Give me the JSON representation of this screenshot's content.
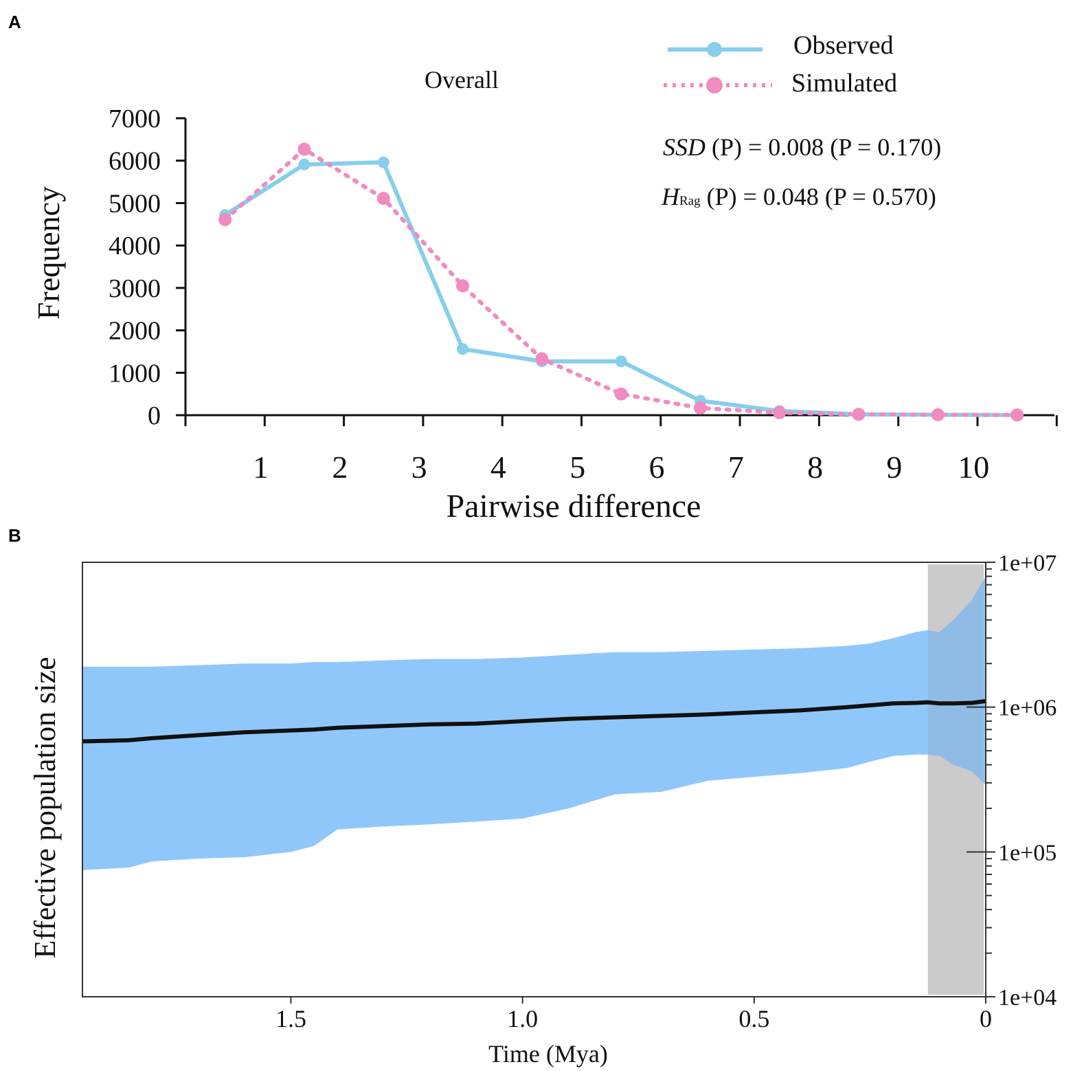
{
  "panels": {
    "a_label": "A",
    "b_label": "B"
  },
  "colors": {
    "observed": "#87CEEB",
    "simulated": "#F08BC0",
    "hpd_fill": "#8AC4FB",
    "median_line": "#111111",
    "shade": "#D9D9D9"
  },
  "chart_data": [
    {
      "type": "line",
      "panel": "A",
      "title": "Overall",
      "xlabel": "Pairwise difference",
      "ylabel": "Frequency",
      "categories": [
        1,
        2,
        3,
        4,
        5,
        6,
        7,
        8,
        9,
        10
      ],
      "ylim": [
        0,
        7000
      ],
      "yticks": [
        "0",
        "1000",
        "2000",
        "3000",
        "4000",
        "5000",
        "6000",
        "7000"
      ],
      "xtick_labels": [
        "1",
        "2",
        "3",
        "4",
        "5",
        "6",
        "7",
        "8",
        "9",
        "10"
      ],
      "series": [
        {
          "name": "Observed",
          "style": "solid",
          "x": [
            0.5,
            1.5,
            2.5,
            3.5,
            4.5,
            5.5,
            6.5,
            7.5,
            8.5,
            9.5,
            10.5
          ],
          "values": [
            4720,
            5910,
            5960,
            1560,
            1270,
            1270,
            340,
            100,
            20,
            10,
            5
          ]
        },
        {
          "name": "Simulated",
          "style": "dotted",
          "x": [
            0.5,
            1.5,
            2.5,
            3.5,
            4.5,
            5.5,
            6.5,
            7.5,
            8.5,
            9.5,
            10.5
          ],
          "values": [
            4610,
            6270,
            5110,
            3050,
            1330,
            500,
            170,
            60,
            20,
            10,
            5
          ]
        }
      ],
      "annotations": {
        "ssd": {
          "name": "SSD",
          "text": " (P) = 0.008 (P = 0.170)"
        },
        "hrag": {
          "name": "H",
          "sub": "Rag",
          "text": " (P) = 0.048 (P = 0.570)"
        }
      }
    },
    {
      "type": "area",
      "panel": "B",
      "xlabel": "Time (Mya)",
      "ylabel": "Effective population size",
      "x_reversed": true,
      "xlim": [
        1.95,
        0
      ],
      "xtick_labels": [
        "1.5",
        "1.0",
        "0.5",
        "0"
      ],
      "xtick_values": [
        1.5,
        1.0,
        0.5,
        0
      ],
      "yscale": "log",
      "ylim": [
        10000,
        10000000
      ],
      "ytick_labels": [
        "1e+04",
        "1e+05",
        "1e+06",
        "1e+07"
      ],
      "ytick_values": [
        10000,
        100000,
        1000000,
        10000000
      ],
      "shaded_region_x": [
        0.125,
        0
      ],
      "time": [
        1.95,
        1.85,
        1.8,
        1.7,
        1.6,
        1.5,
        1.45,
        1.4,
        1.3,
        1.2,
        1.1,
        1.0,
        0.9,
        0.8,
        0.7,
        0.6,
        0.5,
        0.4,
        0.3,
        0.25,
        0.2,
        0.15,
        0.125,
        0.1,
        0.07,
        0.03,
        0.0
      ],
      "median": [
        580000,
        590000,
        610000,
        640000,
        670000,
        690000,
        700000,
        720000,
        740000,
        760000,
        770000,
        800000,
        830000,
        850000,
        870000,
        890000,
        920000,
        950000,
        1000000,
        1030000,
        1060000,
        1070000,
        1080000,
        1060000,
        1060000,
        1070000,
        1100000
      ],
      "upper": [
        1900000,
        1900000,
        1900000,
        1950000,
        2000000,
        2000000,
        2050000,
        2050000,
        2100000,
        2150000,
        2150000,
        2200000,
        2300000,
        2400000,
        2400000,
        2450000,
        2500000,
        2550000,
        2650000,
        2750000,
        3000000,
        3300000,
        3400000,
        3300000,
        4000000,
        5500000,
        8000000
      ],
      "lower": [
        75000,
        78000,
        86000,
        90000,
        92000,
        100000,
        110000,
        143000,
        150000,
        155000,
        162000,
        170000,
        200000,
        250000,
        260000,
        310000,
        330000,
        350000,
        380000,
        420000,
        460000,
        470000,
        470000,
        460000,
        400000,
        360000,
        290000
      ]
    }
  ]
}
